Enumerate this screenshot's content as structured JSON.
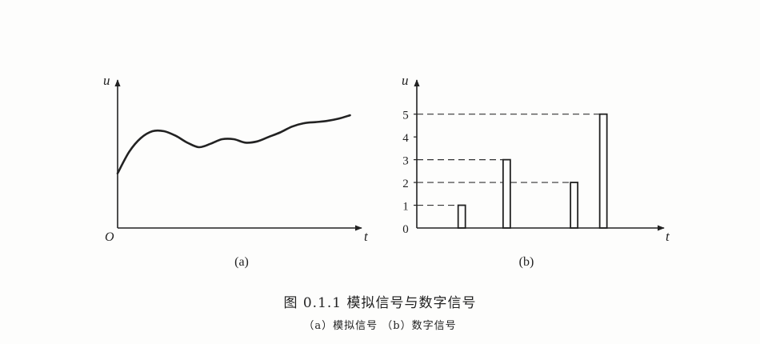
{
  "chart_data": [
    {
      "type": "line",
      "panel_label": "(a)",
      "xlabel": "t",
      "ylabel": "u",
      "origin_label": "O",
      "grid": false,
      "x": [
        0,
        0.5,
        1,
        1.5,
        2,
        2.5,
        3,
        3.5,
        4,
        4.5,
        5,
        5.5,
        6,
        6.5,
        7,
        7.5,
        8,
        8.5,
        9,
        9.5,
        10
      ],
      "y": [
        2.4,
        3.35,
        3.95,
        4.25,
        4.25,
        4.05,
        3.75,
        3.55,
        3.7,
        3.9,
        3.9,
        3.75,
        3.8,
        4.0,
        4.2,
        4.45,
        4.6,
        4.65,
        4.7,
        4.8,
        4.95
      ],
      "xlim": [
        0,
        10.5
      ],
      "ylim": [
        0,
        6.5
      ]
    },
    {
      "type": "bar",
      "panel_label": "(b)",
      "xlabel": "t",
      "ylabel": "u",
      "grid": false,
      "y_ticks": [
        "0",
        "1",
        "2",
        "3",
        "4",
        "5"
      ],
      "x": [
        2,
        4,
        7,
        8.3
      ],
      "values": [
        1,
        3,
        2,
        5
      ],
      "dashed_reference_levels": [
        1,
        2,
        3,
        5
      ],
      "xlim": [
        0,
        11
      ],
      "ylim": [
        0,
        6.5
      ]
    }
  ],
  "caption": {
    "title": "图 0.1.1   模拟信号与数字信号",
    "subtitle": "（a）模拟信号  （b）数字信号"
  }
}
